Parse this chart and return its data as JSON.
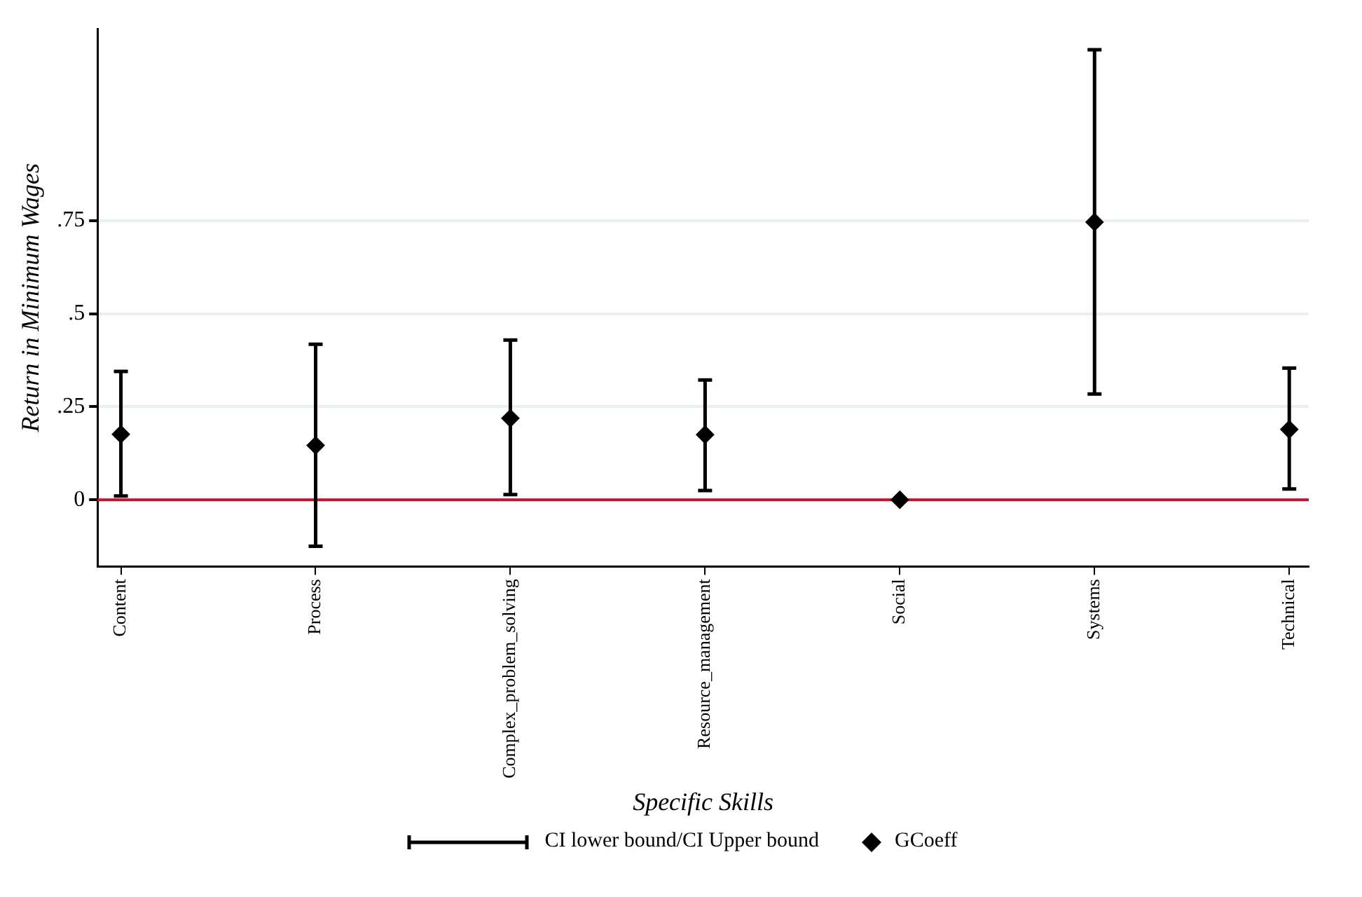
{
  "chart_data": {
    "type": "scatter",
    "xlabel": "Specific Skills",
    "ylabel": "Return in Minimum Wages",
    "categories": [
      "Content",
      "Process",
      "Complex_problem_solving",
      "Resource_management",
      "Social",
      "Systems",
      "Technical"
    ],
    "series": [
      {
        "name": "GCoeff",
        "color": "#000000",
        "values": [
          0.176,
          0.146,
          0.219,
          0.175,
          0,
          0.746,
          0.189
        ],
        "errors": [
          [
            0.01,
            0.345
          ],
          [
            -0.125,
            0.418
          ],
          [
            0.014,
            0.429
          ],
          [
            0.025,
            0.322
          ],
          null,
          [
            0.284,
            1.209
          ],
          [
            0.029,
            0.354
          ]
        ]
      }
    ],
    "annotations": [
      "CI lower bound/CI Upper bound"
    ],
    "ylim": [
      -0.179,
      1.265
    ],
    "yticks": [
      0,
      {
        "value": 0.25,
        "label": ".25"
      },
      {
        "value": 0.5,
        "label": ".5"
      },
      {
        "value": 0.75,
        "label": ".75"
      }
    ],
    "ref_lines": [
      {
        "axis": "y",
        "value": 0,
        "color": "#c8102e"
      }
    ],
    "grid": "y",
    "marker": "diamond",
    "legend": "bottom"
  }
}
